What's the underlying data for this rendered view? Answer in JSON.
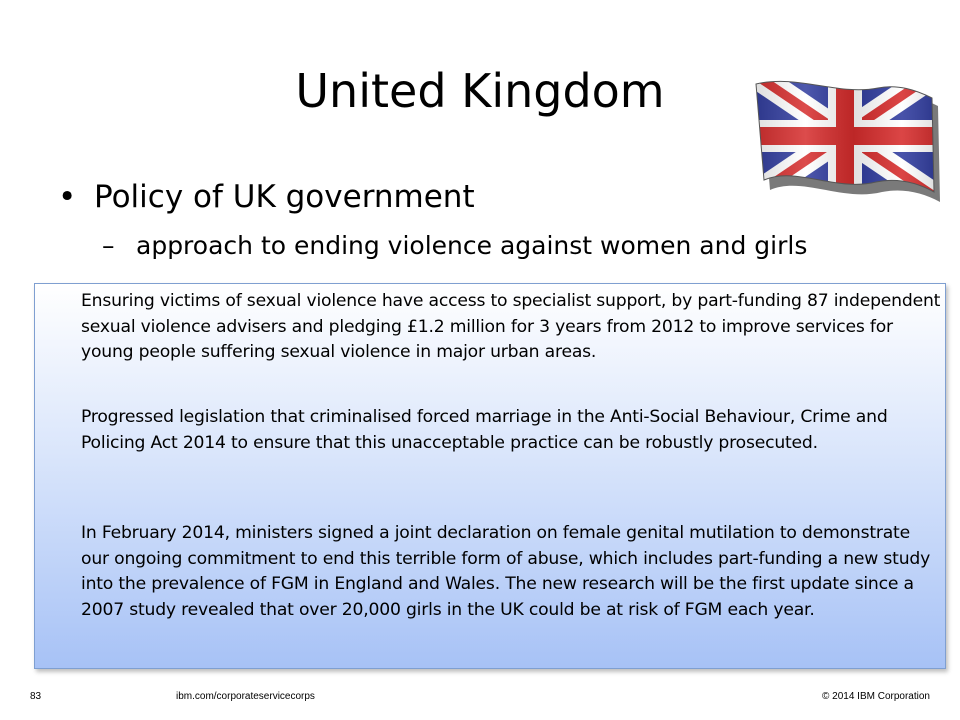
{
  "slide": {
    "title": "United Kingdom",
    "bullet": "Policy of UK government",
    "sub_bullet": "approach to ending violence against women and girls",
    "bullet_marker": "•",
    "sub_marker": "–",
    "flag_icon": "union-jack-flag-icon",
    "box_paragraphs": [
      "Ensuring victims of sexual violence have access to specialist support, by part-funding 87 independent sexual violence advisers and pledging £1.2 million for 3 years from 2012 to improve services for young people suffering sexual violence in major urban areas.",
      "Progressed legislation that criminalised forced marriage in the Anti-Social Behaviour, Crime and Policing Act 2014 to ensure that this unacceptable practice can be robustly prosecuted.",
      "In February 2014, ministers signed a joint declaration on female genital mutilation to demonstrate our ongoing commitment to end this terrible form of abuse, which includes part-funding a new study into the prevalence of FGM in England and Wales. The new research will be the first update since a 2007 study revealed that over 20,000 girls in the UK could be at risk of FGM each year."
    ]
  },
  "footer": {
    "page_number": "83",
    "url": "ibm.com/corporateservicecorps",
    "copyright": "© 2014 IBM  Corporation"
  },
  "colors": {
    "flag_blue": "#2f3b9e",
    "flag_red": "#d62c2c",
    "box_gradient_top": "#ffffff",
    "box_gradient_bottom": "#a7c2f6",
    "box_border": "#7f9fd1"
  }
}
